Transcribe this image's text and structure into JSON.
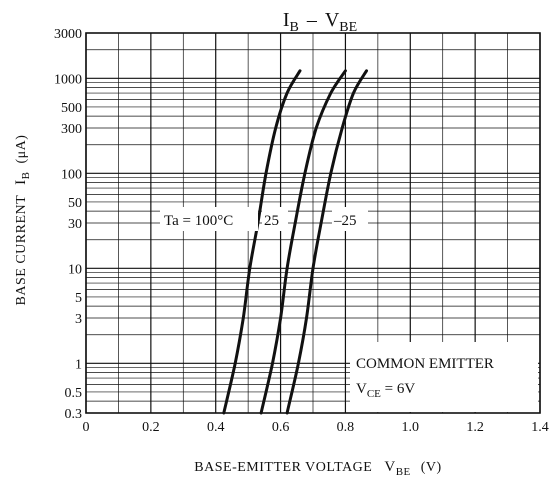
{
  "chart_data": {
    "type": "line",
    "title_main": "I",
    "title_main_sub": "B",
    "title_dash": "–",
    "title_v": "V",
    "title_v_sub": "BE",
    "xlabel_main": "BASE-EMITTER VOLTAGE",
    "xlabel_symbol": "V",
    "xlabel_sub": "BE",
    "xlabel_unit": "(V)",
    "ylabel_main": "BASE CURRENT",
    "ylabel_symbol": "I",
    "ylabel_sub": "B",
    "ylabel_unit": "(μA)",
    "x_scale": "linear",
    "y_scale": "log",
    "xlim": [
      0,
      1.4
    ],
    "ylim": [
      0.3,
      3000
    ],
    "x_ticks": [
      0,
      0.2,
      0.4,
      0.6,
      0.8,
      1.0,
      1.2,
      1.4
    ],
    "x_tick_labels": [
      "0",
      "0.2",
      "0.4",
      "0.6",
      "0.8",
      "1.0",
      "1.2",
      "1.4"
    ],
    "y_ticks": [
      0.3,
      0.5,
      1,
      3,
      5,
      10,
      30,
      50,
      100,
      300,
      500,
      1000,
      3000
    ],
    "y_tick_labels": [
      "0.3",
      "0.5",
      "1",
      "3",
      "5",
      "10",
      "30",
      "50",
      "100",
      "300",
      "500",
      "1000",
      "3000"
    ],
    "grid": true,
    "series": [
      {
        "name": "Ta=100°C",
        "label_text": "Ta = 100°C",
        "points": [
          [
            0.425,
            0.3
          ],
          [
            0.46,
            1
          ],
          [
            0.485,
            3
          ],
          [
            0.505,
            10
          ],
          [
            0.53,
            30
          ],
          [
            0.555,
            100
          ],
          [
            0.585,
            300
          ],
          [
            0.62,
            700
          ],
          [
            0.66,
            1200
          ]
        ]
      },
      {
        "name": "25",
        "label_text": "25",
        "points": [
          [
            0.54,
            0.3
          ],
          [
            0.575,
            1
          ],
          [
            0.6,
            3
          ],
          [
            0.62,
            10
          ],
          [
            0.645,
            30
          ],
          [
            0.675,
            100
          ],
          [
            0.71,
            300
          ],
          [
            0.755,
            700
          ],
          [
            0.8,
            1200
          ]
        ]
      },
      {
        "name": "-25",
        "label_text": "–25",
        "points": [
          [
            0.62,
            0.3
          ],
          [
            0.655,
            1
          ],
          [
            0.68,
            3
          ],
          [
            0.7,
            10
          ],
          [
            0.725,
            30
          ],
          [
            0.755,
            100
          ],
          [
            0.79,
            300
          ],
          [
            0.825,
            700
          ],
          [
            0.865,
            1200
          ]
        ]
      }
    ],
    "annotation_line1": "COMMON EMITTER",
    "annotation_v": "V",
    "annotation_sub": "CE",
    "annotation_val": " = 6V"
  }
}
